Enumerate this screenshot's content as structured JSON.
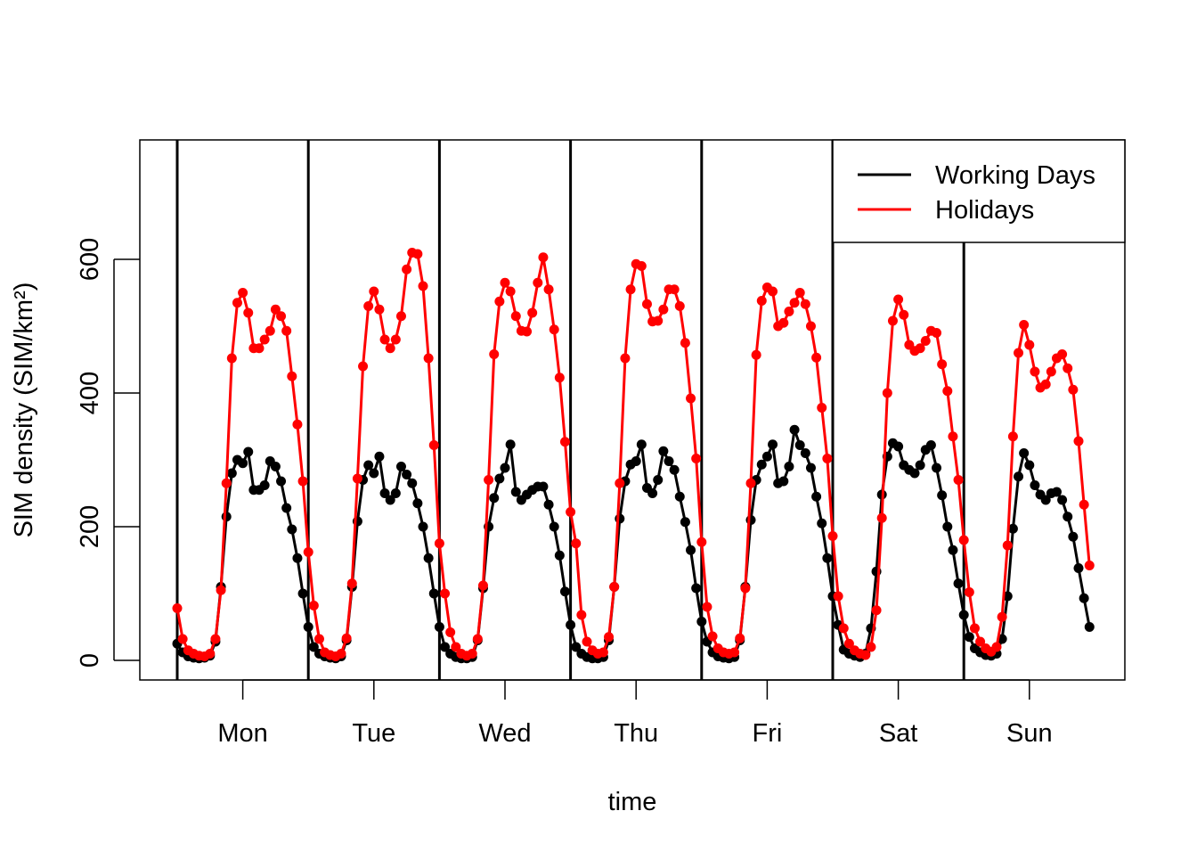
{
  "chart_data": {
    "type": "line",
    "xlabel": "time",
    "ylabel": "SIM density (SIM/km²)",
    "ylim": [
      -25,
      780
    ],
    "y_ticks": [
      "0",
      "200",
      "400",
      "600"
    ],
    "x_ticks": [
      "Mon",
      "Tue",
      "Wed",
      "Thu",
      "Fri",
      "Sat",
      "Sun"
    ],
    "grid": false,
    "legend_position": "top-right",
    "x_description": "hour of week (0-167), day boundaries every 24 hours",
    "series": [
      {
        "name": "Working Days",
        "color": "#000000",
        "values": [
          25,
          12,
          6,
          4,
          3,
          4,
          7,
          28,
          110,
          215,
          280,
          300,
          295,
          312,
          255,
          255,
          262,
          298,
          290,
          268,
          228,
          196,
          153,
          100,
          50,
          20,
          10,
          6,
          4,
          3,
          6,
          30,
          110,
          208,
          270,
          292,
          280,
          305,
          250,
          240,
          250,
          290,
          278,
          265,
          235,
          200,
          153,
          100,
          50,
          20,
          10,
          5,
          3,
          3,
          5,
          30,
          108,
          200,
          243,
          272,
          288,
          323,
          252,
          240,
          248,
          255,
          260,
          260,
          233,
          200,
          157,
          103,
          53,
          20,
          10,
          5,
          3,
          3,
          5,
          30,
          110,
          212,
          268,
          293,
          298,
          323,
          258,
          250,
          270,
          313,
          298,
          285,
          245,
          207,
          165,
          108,
          58,
          28,
          12,
          6,
          4,
          3,
          5,
          30,
          110,
          210,
          270,
          293,
          305,
          323,
          265,
          268,
          290,
          345,
          322,
          310,
          288,
          245,
          205,
          153,
          96,
          53,
          16,
          10,
          7,
          5,
          10,
          48,
          133,
          248,
          305,
          325,
          320,
          292,
          285,
          280,
          292,
          315,
          322,
          288,
          247,
          200,
          165,
          115,
          68,
          35,
          18,
          12,
          8,
          7,
          10,
          32,
          96,
          197,
          275,
          310,
          292,
          262,
          248,
          240,
          250,
          252,
          240,
          215,
          185,
          138,
          93,
          50
        ]
      },
      {
        "name": "Holidays",
        "color": "#ff0000",
        "values": [
          78,
          32,
          15,
          10,
          7,
          6,
          10,
          32,
          105,
          265,
          452,
          535,
          550,
          520,
          467,
          467,
          480,
          493,
          525,
          515,
          493,
          425,
          353,
          268,
          162,
          82,
          32,
          12,
          8,
          6,
          10,
          33,
          115,
          272,
          440,
          530,
          552,
          525,
          480,
          467,
          480,
          515,
          585,
          610,
          608,
          560,
          452,
          322,
          175,
          100,
          42,
          20,
          10,
          7,
          10,
          32,
          112,
          270,
          458,
          537,
          565,
          552,
          515,
          493,
          492,
          520,
          565,
          603,
          555,
          495,
          423,
          327,
          222,
          175,
          68,
          28,
          15,
          10,
          12,
          35,
          110,
          265,
          452,
          555,
          593,
          590,
          533,
          507,
          508,
          525,
          555,
          555,
          530,
          475,
          392,
          302,
          177,
          80,
          36,
          18,
          12,
          10,
          12,
          33,
          108,
          265,
          457,
          538,
          558,
          552,
          500,
          505,
          522,
          535,
          550,
          533,
          500,
          453,
          378,
          302,
          186,
          96,
          48,
          25,
          15,
          10,
          8,
          20,
          75,
          213,
          400,
          508,
          540,
          517,
          472,
          463,
          467,
          478,
          493,
          490,
          443,
          403,
          335,
          270,
          180,
          102,
          48,
          28,
          18,
          13,
          20,
          65,
          172,
          335,
          460,
          502,
          472,
          432,
          408,
          413,
          432,
          452,
          458,
          437,
          405,
          328,
          233,
          142
        ]
      }
    ]
  }
}
